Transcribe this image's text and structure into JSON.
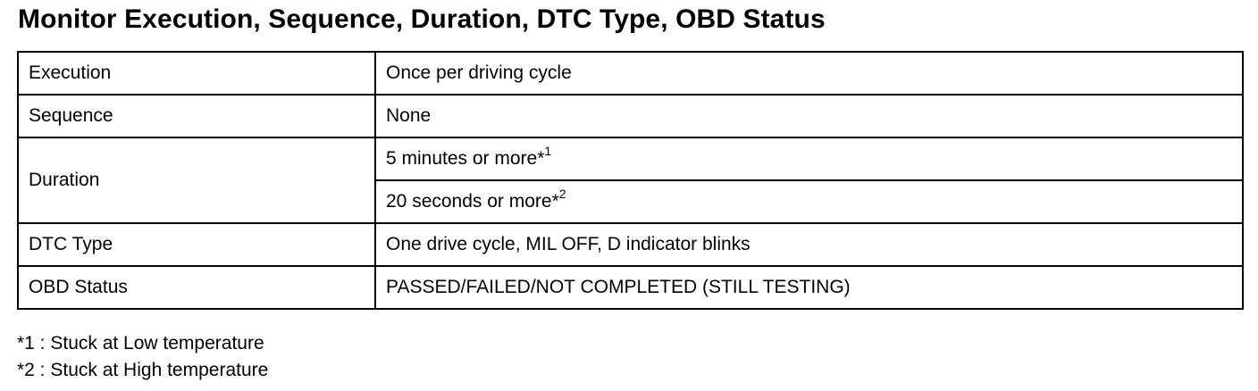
{
  "title": "Monitor Execution, Sequence, Duration, DTC Type, OBD Status",
  "table": {
    "execution": {
      "label": "Execution",
      "value": "Once per driving cycle"
    },
    "sequence": {
      "label": "Sequence",
      "value": "None"
    },
    "duration": {
      "label": "Duration",
      "values": [
        {
          "text": "5 minutes or more*",
          "sup": "1"
        },
        {
          "text": "20 seconds or more*",
          "sup": "2"
        }
      ]
    },
    "dtc_type": {
      "label": "DTC Type",
      "value": "One drive cycle, MIL OFF, D indicator blinks"
    },
    "obd_status": {
      "label": "OBD Status",
      "value": "PASSED/FAILED/NOT COMPLETED (STILL TESTING)"
    }
  },
  "notes": [
    "*1 : Stuck at Low temperature",
    "*2 : Stuck at High temperature"
  ]
}
